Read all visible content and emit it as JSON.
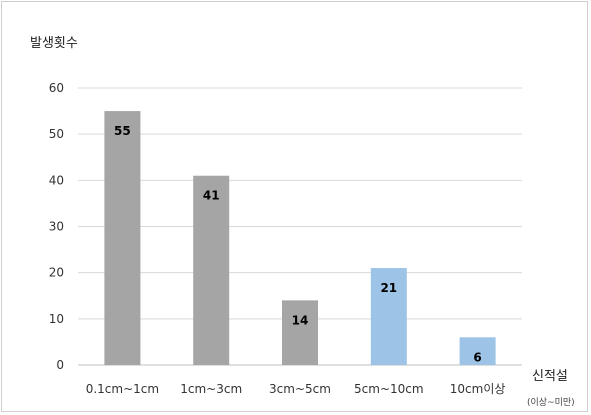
{
  "chart_data": {
    "type": "bar",
    "ylabel": "발생횟수",
    "xlabel": "신적설",
    "xlabel_note": "(이상~미만)",
    "categories": [
      "0.1cm~1cm",
      "1cm~3cm",
      "3cm~5cm",
      "5cm~10cm",
      "10cm이상"
    ],
    "values": [
      55,
      41,
      14,
      21,
      6
    ],
    "bar_colors": [
      "#a6a5a5",
      "#a6a5a5",
      "#a6a5a5",
      "#9dc3e6",
      "#9dc3e6"
    ],
    "ylim": [
      0,
      60
    ],
    "yticks": [
      0,
      10,
      20,
      30,
      40,
      50,
      60
    ],
    "grid": true,
    "legend": "none"
  }
}
